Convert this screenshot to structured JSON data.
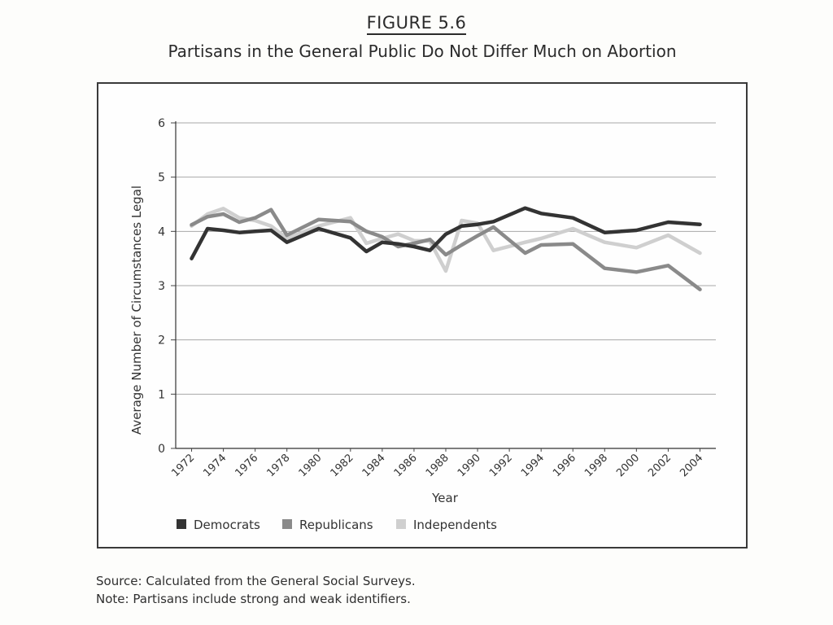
{
  "figure_label": "FIGURE 5.6",
  "figure_title": "Partisans in the General Public Do Not Differ Much on Abortion",
  "source_note": "Source: Calculated from the General Social Surveys.",
  "partisan_note": "Note: Partisans include strong and weak identifiers.",
  "chart_data": {
    "type": "line",
    "title": "Partisans in the General Public Do Not Differ Much on Abortion",
    "xlabel": "Year",
    "ylabel": "Average Number of Circumstances Legal",
    "ylim": [
      0,
      6
    ],
    "yticks": [
      "0",
      "1",
      "2",
      "3",
      "4",
      "5",
      "6"
    ],
    "x": [
      1972,
      1973,
      1974,
      1975,
      1976,
      1977,
      1978,
      1980,
      1982,
      1983,
      1984,
      1985,
      1986,
      1987,
      1988,
      1989,
      1990,
      1991,
      1993,
      1994,
      1996,
      1998,
      2000,
      2002,
      2004
    ],
    "xticks": [
      "1972",
      "1974",
      "1976",
      "1978",
      "1980",
      "1982",
      "1984",
      "1986",
      "1988",
      "1990",
      "1992",
      "1994",
      "1996",
      "1998",
      "2000",
      "2002",
      "2004"
    ],
    "grid": true,
    "legend_position": "bottom-left",
    "series": [
      {
        "name": "Democrats",
        "color": "#333333",
        "values": [
          3.5,
          4.05,
          4.02,
          3.98,
          4.0,
          4.02,
          3.8,
          4.05,
          3.88,
          3.63,
          3.8,
          3.77,
          3.72,
          3.65,
          3.95,
          4.1,
          4.13,
          4.18,
          4.43,
          4.33,
          4.25,
          3.98,
          4.02,
          4.17,
          4.13
        ]
      },
      {
        "name": "Republicans",
        "color": "#8a8a8a",
        "values": [
          4.12,
          4.27,
          4.32,
          4.17,
          4.25,
          4.4,
          3.93,
          4.22,
          4.18,
          4.0,
          3.9,
          3.72,
          3.78,
          3.85,
          3.57,
          3.75,
          3.92,
          4.08,
          3.6,
          3.75,
          3.77,
          3.32,
          3.25,
          3.37,
          2.93
        ]
      },
      {
        "name": "Independents",
        "color": "#cfcfcf",
        "values": [
          4.1,
          4.32,
          4.42,
          4.25,
          4.2,
          4.1,
          3.87,
          4.1,
          4.25,
          3.78,
          3.87,
          3.95,
          3.83,
          3.82,
          3.27,
          4.2,
          4.15,
          3.65,
          3.8,
          3.87,
          4.05,
          3.8,
          3.7,
          3.93,
          3.6
        ]
      }
    ]
  }
}
